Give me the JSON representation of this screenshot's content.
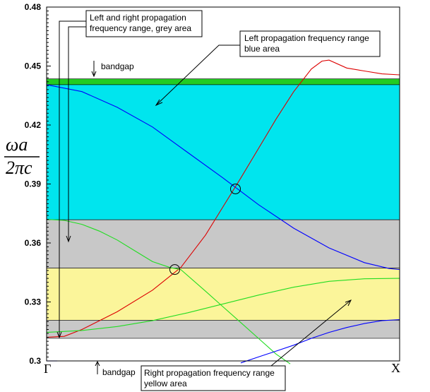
{
  "chart_data": {
    "type": "line",
    "ylabel_numerator": "ωa",
    "ylabel_denominator": "2πc",
    "xlabel_left": "Γ",
    "xlabel_right": "X",
    "ylim": [
      0.3,
      0.48
    ],
    "xlim": [
      0,
      1
    ],
    "yticks": [
      {
        "value": 0.3,
        "label": "0.3"
      },
      {
        "value": 0.33,
        "label": "0.33"
      },
      {
        "value": 0.36,
        "label": "0.36"
      },
      {
        "value": 0.39,
        "label": "0.39"
      },
      {
        "value": 0.42,
        "label": "0.42"
      },
      {
        "value": 0.45,
        "label": "0.45"
      },
      {
        "value": 0.48,
        "label": "0.48"
      }
    ],
    "grid": false,
    "bands": [
      {
        "kind": "bandgap",
        "y0": 0.4405,
        "y1": 0.4435,
        "color": "#22cc22"
      },
      {
        "kind": "left-only",
        "y0": 0.3718,
        "y1": 0.4405,
        "color": "#00e5ee"
      },
      {
        "kind": "left-and-right",
        "y0": 0.3472,
        "y1": 0.3718,
        "color": "#c8c8c8"
      },
      {
        "kind": "right-only",
        "y0": 0.3207,
        "y1": 0.3472,
        "color": "#fbf59a"
      },
      {
        "kind": "left-and-right",
        "y0": 0.3115,
        "y1": 0.3207,
        "color": "#c8c8c8"
      }
    ],
    "series": [
      {
        "color": "#0000ff",
        "x": [
          0,
          0.1,
          0.2,
          0.3,
          0.4,
          0.5,
          0.6,
          0.7,
          0.8,
          0.9,
          0.97,
          1.0
        ],
        "y": [
          0.4405,
          0.437,
          0.429,
          0.419,
          0.406,
          0.393,
          0.3795,
          0.3675,
          0.3575,
          0.35,
          0.347,
          0.3465
        ]
      },
      {
        "color": "#dd0000",
        "x": [
          0,
          0.05,
          0.1,
          0.2,
          0.3,
          0.38,
          0.45,
          0.5,
          0.55,
          0.6,
          0.65,
          0.7,
          0.75,
          0.78,
          0.8,
          0.85,
          0.9,
          0.95,
          1.0
        ],
        "y": [
          0.312,
          0.3125,
          0.316,
          0.325,
          0.336,
          0.3475,
          0.364,
          0.3785,
          0.393,
          0.408,
          0.423,
          0.437,
          0.4485,
          0.4525,
          0.453,
          0.449,
          0.4475,
          0.446,
          0.4455
        ]
      },
      {
        "color": "#22dd22",
        "x": [
          0,
          0.05,
          0.1,
          0.15,
          0.2,
          0.25,
          0.3,
          0.35,
          0.38,
          0.45,
          0.5,
          0.55,
          0.6,
          0.65,
          0.69
        ],
        "y": [
          0.372,
          0.3715,
          0.3695,
          0.366,
          0.3615,
          0.356,
          0.3505,
          0.3475,
          0.3465,
          0.3355,
          0.3275,
          0.3195,
          0.3115,
          0.3035,
          0.2985
        ]
      },
      {
        "color": "#22dd22",
        "x": [
          0,
          0.1,
          0.2,
          0.3,
          0.4,
          0.5,
          0.6,
          0.7,
          0.8,
          0.9,
          1.0
        ],
        "y": [
          0.3145,
          0.3155,
          0.3175,
          0.3205,
          0.3245,
          0.329,
          0.3335,
          0.3375,
          0.3405,
          0.3418,
          0.342
        ]
      },
      {
        "color": "#0000ff",
        "x": [
          0.55,
          0.6,
          0.65,
          0.7,
          0.75,
          0.8,
          0.85,
          0.9,
          0.95,
          1.0
        ],
        "y": [
          0.299,
          0.302,
          0.305,
          0.308,
          0.3115,
          0.3145,
          0.317,
          0.319,
          0.3205,
          0.321
        ]
      },
      {
        "color": "#0000ff",
        "x": [
          0,
          0.03
        ],
        "y": [
          0.3,
          0.3
        ]
      }
    ],
    "crossings": [
      {
        "x": 0.535,
        "y": 0.3875
      },
      {
        "x": 0.363,
        "y": 0.3465
      }
    ],
    "annotations": {
      "grey": "Left and right propagation\nfrequency range, grey area",
      "blue": "Left propagation frequency range\nblue area",
      "yellow": "Right propagation frequency range\nyellow area",
      "bandgap_top": "bandgap",
      "bandgap_bottom": "bandgap"
    }
  }
}
